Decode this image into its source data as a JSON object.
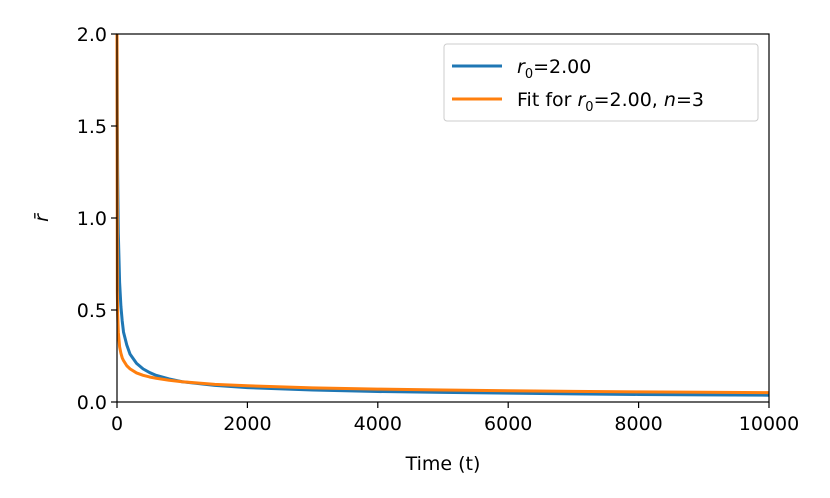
{
  "chart_data": {
    "type": "line",
    "xlabel": "Time (t)",
    "ylabel": "r̄",
    "xlim": [
      0,
      10000
    ],
    "ylim": [
      0,
      2.0
    ],
    "xticks": [
      0,
      2000,
      4000,
      6000,
      8000,
      10000
    ],
    "yticks": [
      0.0,
      0.5,
      1.0,
      1.5,
      2.0
    ],
    "xtick_labels": [
      "0",
      "2000",
      "4000",
      "6000",
      "8000",
      "10000"
    ],
    "ytick_labels": [
      "0.0",
      "0.5",
      "1.0",
      "1.5",
      "2.0"
    ],
    "grid": false,
    "legend_position": "top-right",
    "series": [
      {
        "name": "r0=2.00",
        "color": "#1f77b4",
        "x": [
          0,
          5,
          10,
          20,
          40,
          60,
          80,
          100,
          150,
          200,
          300,
          400,
          500,
          600,
          800,
          1000,
          1500,
          2000,
          3000,
          4000,
          5000,
          6000,
          7000,
          8000,
          9000,
          10000
        ],
        "y": [
          2.0,
          1.55,
          1.25,
          0.92,
          0.65,
          0.52,
          0.44,
          0.38,
          0.31,
          0.26,
          0.21,
          0.18,
          0.16,
          0.145,
          0.125,
          0.11,
          0.09,
          0.078,
          0.065,
          0.057,
          0.052,
          0.048,
          0.044,
          0.041,
          0.039,
          0.037
        ]
      },
      {
        "name": "Fit for r0=2.00, n=3",
        "color": "#ff7f0e",
        "x": [
          0,
          5,
          10,
          20,
          40,
          60,
          80,
          100,
          150,
          200,
          300,
          400,
          500,
          600,
          800,
          1000,
          1500,
          2000,
          3000,
          4000,
          5000,
          6000,
          7000,
          8000,
          9000,
          10000
        ],
        "y": [
          2.0,
          0.6,
          0.48,
          0.38,
          0.3,
          0.265,
          0.24,
          0.225,
          0.197,
          0.18,
          0.158,
          0.145,
          0.136,
          0.129,
          0.118,
          0.11,
          0.096,
          0.088,
          0.077,
          0.07,
          0.065,
          0.061,
          0.058,
          0.055,
          0.053,
          0.051
        ]
      }
    ]
  },
  "legend": {
    "entry1_sub": "0",
    "entry1_rest": "=2.00",
    "entry2_prefix": "Fit for ",
    "entry2_sub": "0",
    "entry2_mid": "=2.00, ",
    "entry2_n": "n",
    "entry2_end": "=3"
  }
}
